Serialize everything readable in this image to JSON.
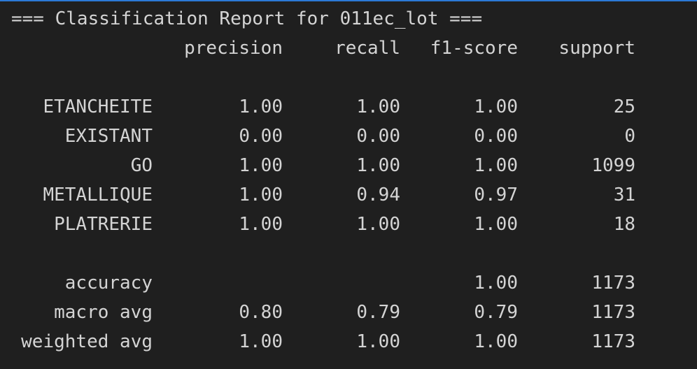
{
  "report": {
    "title_line": "=== Classification Report for 011ec_lot ===",
    "headers": {
      "precision": "precision",
      "recall": "recall",
      "f1": "f1-score",
      "support": "support"
    },
    "classes": [
      {
        "label": "ETANCHEITE",
        "precision": "1.00",
        "recall": "1.00",
        "f1": "1.00",
        "support": "25"
      },
      {
        "label": "EXISTANT",
        "precision": "0.00",
        "recall": "0.00",
        "f1": "0.00",
        "support": "0"
      },
      {
        "label": "GO",
        "precision": "1.00",
        "recall": "1.00",
        "f1": "1.00",
        "support": "1099"
      },
      {
        "label": "METALLIQUE",
        "precision": "1.00",
        "recall": "0.94",
        "f1": "0.97",
        "support": "31"
      },
      {
        "label": "PLATRERIE",
        "precision": "1.00",
        "recall": "1.00",
        "f1": "1.00",
        "support": "18"
      }
    ],
    "summary": [
      {
        "label": "accuracy",
        "precision": "",
        "recall": "",
        "f1": "1.00",
        "support": "1173"
      },
      {
        "label": "macro avg",
        "precision": "0.80",
        "recall": "0.79",
        "f1": "0.79",
        "support": "1173"
      },
      {
        "label": "weighted avg",
        "precision": "1.00",
        "recall": "1.00",
        "f1": "1.00",
        "support": "1173"
      }
    ]
  }
}
